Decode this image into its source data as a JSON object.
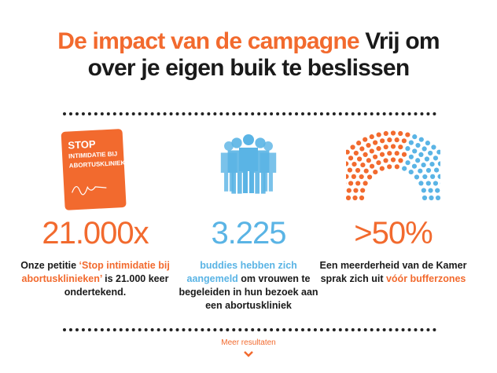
{
  "header": {
    "title_highlight": "De impact van de campagne",
    "title_rest": "Vrij om over je eigen buik te beslissen"
  },
  "items": [
    {
      "card": {
        "lines": [
          "STOP",
          "INTIMIDATIE BIJ",
          "ABORTUSKLINIEKEN"
        ]
      },
      "stat": "21.000x",
      "color": "#f26a2e",
      "description": [
        {
          "text": "Onze petitie "
        },
        {
          "text": "‘Stop intimidatie bij abortusklinieken’",
          "accent": true
        },
        {
          "text": " is 21.000 keer ondertekend."
        }
      ]
    },
    {
      "stat": "3.225",
      "color": "#5ab4e5",
      "description": [
        {
          "text": "buddies hebben zich aangemeld",
          "accent": true
        },
        {
          "text": " om vrouwen te begeleiden in hun bezoek aan een abortuskliniek"
        }
      ]
    },
    {
      "stat": ">50%",
      "color": "#f26a2e",
      "description": [
        {
          "text": "Een meerderheid van de Kamer sprak zich uit "
        },
        {
          "text": "vóór bufferzones",
          "accent": true
        }
      ]
    }
  ],
  "footer": {
    "link": "Meer resultaten"
  }
}
